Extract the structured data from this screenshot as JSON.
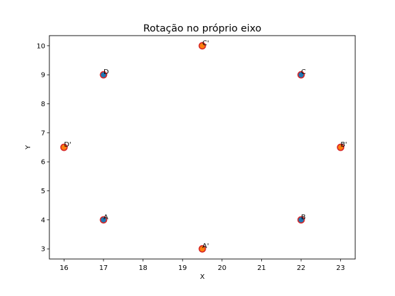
{
  "chart_data": {
    "type": "scatter",
    "title": "Rotação no próprio eixo",
    "xlabel": "X",
    "ylabel": "Y",
    "xlim": [
      15.63,
      23.37
    ],
    "ylim": [
      2.65,
      10.35
    ],
    "xticks": [
      16,
      17,
      18,
      19,
      20,
      21,
      22,
      23
    ],
    "yticks": [
      3,
      4,
      5,
      6,
      7,
      8,
      9,
      10
    ],
    "grid": false,
    "series": [
      {
        "color": "#1f77b4",
        "edge_color": "#d62728",
        "points": [
          {
            "label": "A",
            "x": 17,
            "y": 4
          },
          {
            "label": "B",
            "x": 22,
            "y": 4
          },
          {
            "label": "C",
            "x": 22,
            "y": 9
          },
          {
            "label": "D",
            "x": 17,
            "y": 9
          }
        ]
      },
      {
        "color": "#ff7f0e",
        "edge_color": "#d62728",
        "points": [
          {
            "label": "A'",
            "x": 19.5,
            "y": 3
          },
          {
            "label": "B'",
            "x": 23,
            "y": 6.5
          },
          {
            "label": "C'",
            "x": 19.5,
            "y": 10
          },
          {
            "label": "D'",
            "x": 16,
            "y": 6.5
          }
        ]
      }
    ]
  }
}
